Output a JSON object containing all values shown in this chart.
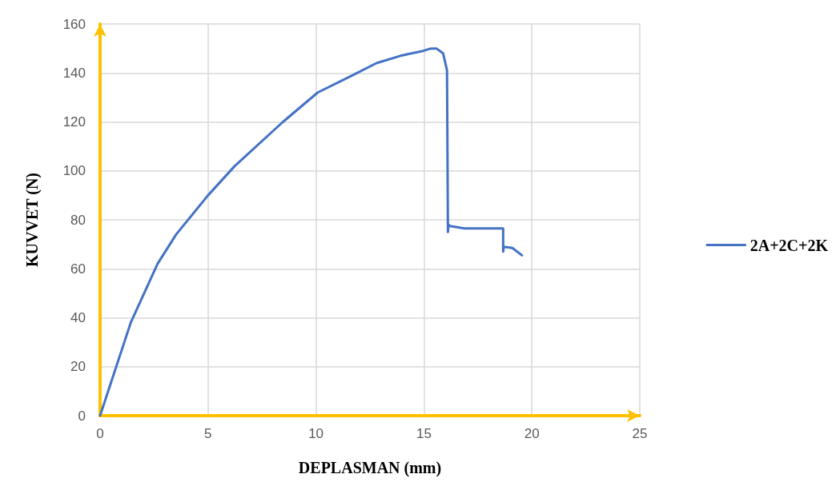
{
  "chart_data": {
    "type": "line",
    "xlabel": "DEPLASMAN (mm)",
    "ylabel": "KUVVET (N)",
    "xlim": [
      0,
      25
    ],
    "xticks": [
      0,
      5,
      10,
      15,
      20,
      25
    ],
    "ylim": [
      0,
      160
    ],
    "yticks": [
      0,
      20,
      40,
      60,
      80,
      100,
      120,
      140,
      160
    ],
    "grid": true,
    "legend": "right",
    "marker": "none",
    "line_style": "solid",
    "series": [
      {
        "name": "2A+2C+2K",
        "color": "#4472c4",
        "x": [
          0,
          1.42,
          2.66,
          3.52,
          5.0,
          6.24,
          8.47,
          10.08,
          11.68,
          12.8,
          13.91,
          14.96,
          15.33,
          15.58,
          15.89,
          16.07,
          16.11,
          16.11,
          16.14,
          16.2,
          16.88,
          18.67,
          18.67,
          18.7,
          19.1,
          19.54
        ],
        "values": [
          0,
          38,
          62,
          74,
          90,
          102,
          120,
          132,
          139,
          144,
          147,
          149,
          150,
          150,
          148,
          141,
          78,
          75,
          78,
          77.5,
          76.5,
          76.5,
          67,
          69,
          68.5,
          65.5
        ]
      }
    ]
  }
}
